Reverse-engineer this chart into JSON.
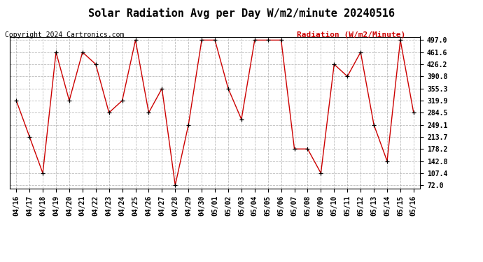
{
  "title": "Solar Radiation Avg per Day W/m2/minute 20240516",
  "copyright": "Copyright 2024 Cartronics.com",
  "legend_label": "Radiation (W/m2/Minute)",
  "dates": [
    "04/16",
    "04/17",
    "04/18",
    "04/19",
    "04/20",
    "04/21",
    "04/22",
    "04/23",
    "04/24",
    "04/25",
    "04/26",
    "04/27",
    "04/28",
    "04/29",
    "04/30",
    "05/01",
    "05/02",
    "05/03",
    "05/04",
    "05/05",
    "05/06",
    "05/07",
    "05/08",
    "05/09",
    "05/10",
    "05/11",
    "05/12",
    "05/13",
    "05/14",
    "05/15",
    "05/16"
  ],
  "values": [
    319.9,
    213.7,
    107.4,
    461.6,
    319.9,
    461.6,
    426.2,
    284.5,
    319.9,
    497.0,
    284.5,
    355.3,
    72.0,
    249.1,
    497.0,
    497.0,
    355.3,
    265.0,
    497.0,
    497.0,
    497.0,
    178.2,
    178.2,
    107.4,
    426.2,
    390.8,
    461.6,
    249.1,
    142.8,
    497.0,
    284.5
  ],
  "line_color": "#cc0000",
  "marker_color": "#000000",
  "bg_color": "#ffffff",
  "grid_color": "#bbbbbb",
  "ytick_labels": [
    "72.0",
    "107.4",
    "142.8",
    "178.2",
    "213.7",
    "249.1",
    "284.5",
    "319.9",
    "355.3",
    "390.8",
    "426.2",
    "461.6",
    "497.0"
  ],
  "ytick_values": [
    72.0,
    107.4,
    142.8,
    178.2,
    213.7,
    249.1,
    284.5,
    319.9,
    355.3,
    390.8,
    426.2,
    461.6,
    497.0
  ],
  "ymin": 62.0,
  "ymax": 507.0,
  "title_fontsize": 11,
  "axis_fontsize": 7,
  "copyright_fontsize": 7,
  "legend_fontsize": 8
}
